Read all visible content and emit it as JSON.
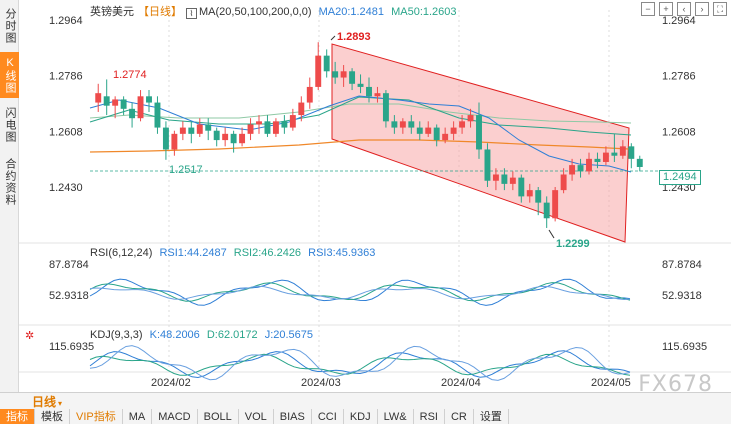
{
  "left_tabs": [
    {
      "label": "分时图",
      "active": false
    },
    {
      "label": "K线图",
      "active": true
    },
    {
      "label": "闪电图",
      "active": false
    },
    {
      "label": "合约资料",
      "active": false
    }
  ],
  "header": {
    "symbol": "英镑美元",
    "period_tag": "【日线】",
    "ma_params": "MA(20,50,100,200,0,0)",
    "ma20": "MA20:1.2481",
    "ma50": "MA50:1.2603"
  },
  "top_icons": [
    "zoom-out-icon",
    "zoom-in-icon",
    "left-arrow-icon",
    "right-arrow-icon",
    "fullscreen-icon"
  ],
  "price_axis": {
    "left_ticks": [
      "1.2964",
      "1.2786",
      "1.2608",
      "1.2430"
    ],
    "right_ticks": [
      "1.2964",
      "1.2786",
      "1.2608",
      "1.2430"
    ],
    "current_price": "1.2494"
  },
  "annotations": {
    "high_label": "1.2893",
    "low_label": "1.2299",
    "left_high_label": "1.2774",
    "left_low_label": "1.2517"
  },
  "rsi": {
    "title": "RSI(6,12,24)",
    "rsi1": "RSI1:44.2487",
    "rsi2": "RSI2:46.2426",
    "rsi3": "RSI3:45.9363",
    "ticks": [
      "87.8784",
      "52.9318"
    ]
  },
  "kdj": {
    "title": "KDJ(9,3,3)",
    "k": "K:48.2006",
    "d": "D:62.0172",
    "j": "J:20.5675",
    "ticks": [
      "115.6935"
    ]
  },
  "x_axis": [
    "2024/02",
    "2024/03",
    "2024/04",
    "2024/05"
  ],
  "toolbar": {
    "period": "日线",
    "buttons": [
      "指标",
      "模板",
      "VIP指标",
      "MA",
      "MACD",
      "BOLL",
      "VOL",
      "BIAS",
      "CCI",
      "KDJ",
      "LW&",
      "RSI",
      "CR",
      "设置"
    ],
    "active": "指标",
    "vip": "VIP指标"
  },
  "watermark": "FX678",
  "colors": {
    "up": "#ee4b4b",
    "down": "#2aa58a",
    "channel_fill": "#f7a7a7",
    "channel_stroke": "#e02020",
    "ma20": "#2f7fd6",
    "ma50": "#2aa58a",
    "ma100": "#8fc9a5",
    "ma200": "#f0882a"
  }
}
